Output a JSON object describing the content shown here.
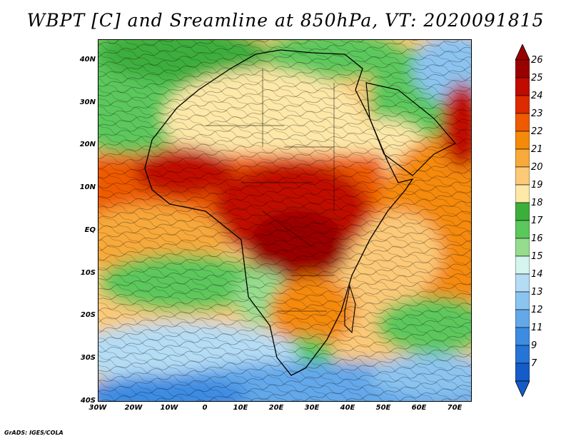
{
  "title": "WBPT [C] and Sreamline at 850hPa, VT: 2020091815",
  "map": {
    "lat_labels": [
      "40N",
      "30N",
      "20N",
      "10N",
      "EQ",
      "10S",
      "20S",
      "30S",
      "40S"
    ],
    "lon_labels": [
      "30W",
      "20W",
      "10W",
      "0",
      "10E",
      "20E",
      "30E",
      "40E",
      "50E",
      "60E",
      "70E"
    ],
    "lat_range": [
      -40,
      45
    ],
    "lon_range": [
      -30,
      75
    ]
  },
  "colorbar": {
    "labels": [
      "26",
      "25",
      "24",
      "23",
      "22",
      "21",
      "20",
      "19",
      "18",
      "17",
      "16",
      "15",
      "14",
      "13",
      "12",
      "11",
      "9",
      "7"
    ],
    "colors": [
      "#9a0000",
      "#c10b00",
      "#dd2a00",
      "#ee5a00",
      "#f58a0a",
      "#f7a93a",
      "#fbc978",
      "#fde8a8",
      "#3cae3c",
      "#5bc85b",
      "#96dc8e",
      "#d4f4ee",
      "#b4dcf4",
      "#8cc4f0",
      "#64a8ea",
      "#3c8ce2",
      "#2674d6",
      "#145cc8"
    ]
  },
  "credit": "GrADS: IGES/COLA"
}
